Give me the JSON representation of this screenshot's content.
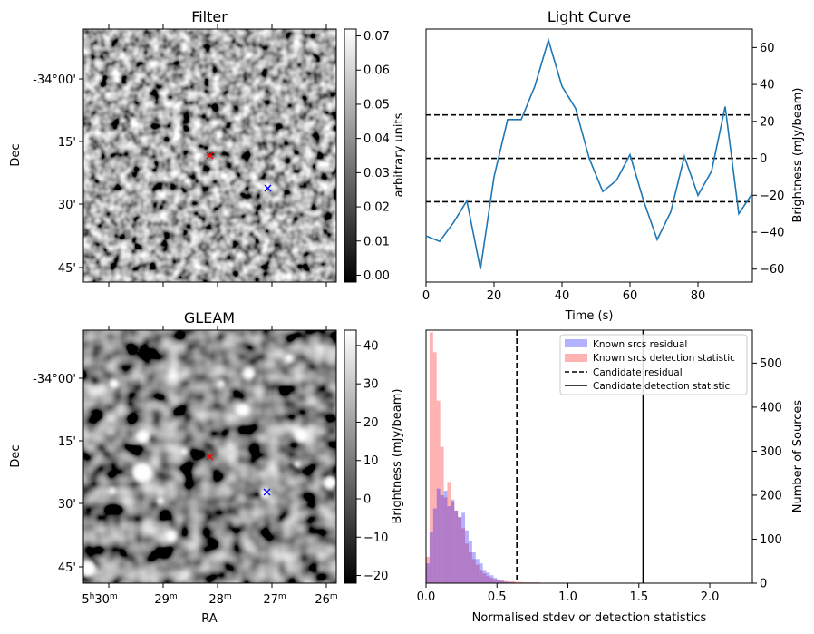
{
  "chart_data": [
    {
      "type": "heatmap",
      "title": "Filter",
      "xlabel": "",
      "ylabel": "Dec",
      "ytick_labels": [
        "-34°00'",
        "15'",
        "30'",
        "45'"
      ],
      "colorbar": {
        "label": "arbitrary units",
        "range": [
          -0.002,
          0.072
        ],
        "ticks": [
          0.0,
          0.01,
          0.02,
          0.03,
          0.04,
          0.05,
          0.06,
          0.07
        ],
        "tick_labels": [
          "0.00",
          "0.01",
          "0.02",
          "0.03",
          "0.04",
          "0.05",
          "0.06",
          "0.07"
        ]
      },
      "markers": [
        {
          "ra": "5h27m50s",
          "dec": "-34°18.5'",
          "color": "#ff0000",
          "symbol": "x"
        },
        {
          "ra": "5h26m57s",
          "dec": "-34°26.5'",
          "color": "#0000ff",
          "symbol": "x"
        }
      ]
    },
    {
      "type": "line",
      "title": "Light Curve",
      "xlabel": "Time (s)",
      "ylabel": "Brightness (mJy/beam)",
      "xlim": [
        0,
        96
      ],
      "ylim": [
        -67,
        70
      ],
      "xticks": [
        0,
        20,
        40,
        60,
        80
      ],
      "yticks": [
        -60,
        -40,
        -20,
        0,
        20,
        40,
        60
      ],
      "series": [
        {
          "color": "#1f77b4",
          "x": [
            0,
            4,
            8,
            12,
            16,
            20,
            24,
            28,
            32,
            36,
            40,
            44,
            48,
            52,
            56,
            60,
            64,
            68,
            72,
            76,
            80,
            84,
            88,
            92,
            96
          ],
          "y": [
            -42,
            -45,
            -35,
            -23,
            -60,
            -10,
            21,
            21,
            39,
            64,
            39,
            27,
            0,
            -18,
            -12,
            2,
            -23,
            -44,
            -29,
            1,
            -20,
            -7,
            28,
            -30,
            -19
          ]
        }
      ],
      "hlines": [
        {
          "y": 23.5,
          "style": "dashed",
          "color": "#000000"
        },
        {
          "y": 0,
          "style": "dashed",
          "color": "#000000"
        },
        {
          "y": -23.5,
          "style": "dashed",
          "color": "#000000"
        }
      ]
    },
    {
      "type": "heatmap",
      "title": "GLEAM",
      "xlabel": "RA",
      "ylabel": "Dec",
      "ytick_labels": [
        "-34°00'",
        "15'",
        "30'",
        "45'"
      ],
      "xtick_labels": [
        {
          "h": "5",
          "m": "30"
        },
        {
          "h": "",
          "m": "29"
        },
        {
          "h": "",
          "m": "28"
        },
        {
          "h": "",
          "m": "27"
        },
        {
          "h": "",
          "m": "26"
        }
      ],
      "colorbar": {
        "label": "Brightness (mJy/beam)",
        "range": [
          -22,
          44
        ],
        "ticks": [
          -20,
          -10,
          0,
          10,
          20,
          30,
          40
        ],
        "tick_labels": [
          "−20",
          "−10",
          "0",
          "10",
          "20",
          "30",
          "40"
        ]
      },
      "markers": [
        {
          "ra": "5h27m50s",
          "dec": "-34°18.5'",
          "color": "#ff0000",
          "symbol": "x"
        },
        {
          "ra": "5h26m57s",
          "dec": "-34°26.5'",
          "color": "#0000ff",
          "symbol": "x"
        }
      ]
    },
    {
      "type": "bar",
      "subtype": "histogram",
      "xlabel": "Normalised stdev or detection statistics",
      "ylabel": "Number of Sources",
      "xlim": [
        0,
        2.3
      ],
      "ylim": [
        0,
        575
      ],
      "xticks": [
        0.0,
        0.5,
        1.0,
        1.5,
        2.0
      ],
      "xtick_labels": [
        "0.0",
        "0.5",
        "1.0",
        "1.5",
        "2.0"
      ],
      "yticks": [
        0,
        100,
        200,
        300,
        400,
        500
      ],
      "bin_width": 0.025,
      "legend_position": "top-right",
      "series": [
        {
          "name": "Known srcs residual",
          "color": "#0000ff",
          "alpha": 0.3,
          "bin_start": 0.0,
          "values": [
            45,
            115,
            170,
            215,
            200,
            210,
            175,
            190,
            165,
            150,
            160,
            120,
            95,
            70,
            55,
            45,
            30,
            24,
            18,
            12,
            8,
            5,
            3,
            2,
            2,
            1,
            1,
            1
          ]
        },
        {
          "name": "Known srcs detection statistic",
          "color": "#ff0000",
          "alpha": 0.3,
          "bin_start": 0.0,
          "values": [
            60,
            570,
            525,
            415,
            310,
            195,
            230,
            185,
            165,
            150,
            125,
            90,
            70,
            55,
            42,
            30,
            22,
            16,
            12,
            9,
            8,
            6,
            5,
            4,
            4,
            3,
            3,
            2,
            2,
            2,
            2,
            2,
            1,
            1,
            1,
            1,
            1,
            1,
            1,
            1,
            1,
            1,
            1,
            1,
            1,
            1,
            1,
            1,
            1,
            1,
            1,
            1,
            1,
            1,
            1,
            1,
            1,
            1,
            1,
            1,
            1,
            1,
            1,
            1,
            1,
            1,
            1,
            1,
            1,
            1,
            1,
            1,
            1,
            1,
            1,
            1,
            1,
            1,
            1,
            1,
            1,
            1,
            1,
            1,
            1,
            1,
            1,
            1
          ]
        }
      ],
      "vlines": [
        {
          "name": "Candidate residual",
          "x": 0.64,
          "style": "dashed",
          "color": "#000000"
        },
        {
          "name": "Candidate detection statistic",
          "x": 1.53,
          "style": "solid",
          "color": "#000000"
        }
      ]
    }
  ]
}
